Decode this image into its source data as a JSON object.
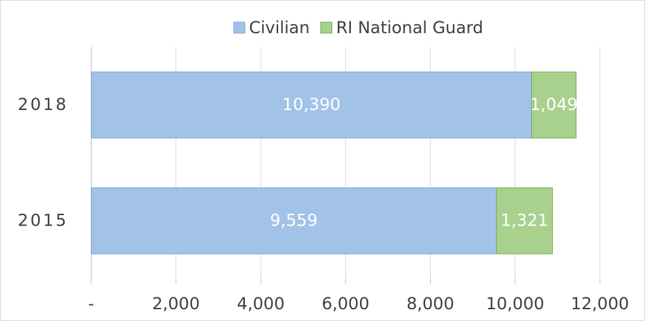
{
  "chart_data": {
    "type": "stacked-barh",
    "categories": [
      "2015",
      "2018"
    ],
    "series": [
      {
        "name": "Civilian",
        "color": "#a3c2e8",
        "edge": "#7aa6d8",
        "values": [
          9559,
          10390
        ],
        "value_labels": [
          "9,559",
          "10,390"
        ]
      },
      {
        "name": "RI National Guard",
        "color": "#a9d18e",
        "edge": "#70ad47",
        "values": [
          1321,
          1049
        ],
        "value_labels": [
          "1,321",
          "1,049"
        ]
      }
    ],
    "xlim": [
      0,
      12000
    ],
    "xticks": [
      {
        "value": 0,
        "label": "-"
      },
      {
        "value": 2000,
        "label": "2,000"
      },
      {
        "value": 4000,
        "label": "4,000"
      },
      {
        "value": 6000,
        "label": "6,000"
      },
      {
        "value": 8000,
        "label": "8,000"
      },
      {
        "value": 10000,
        "label": "10,000"
      },
      {
        "value": 12000,
        "label": "12,000"
      }
    ],
    "grid": true,
    "legend": "top"
  }
}
